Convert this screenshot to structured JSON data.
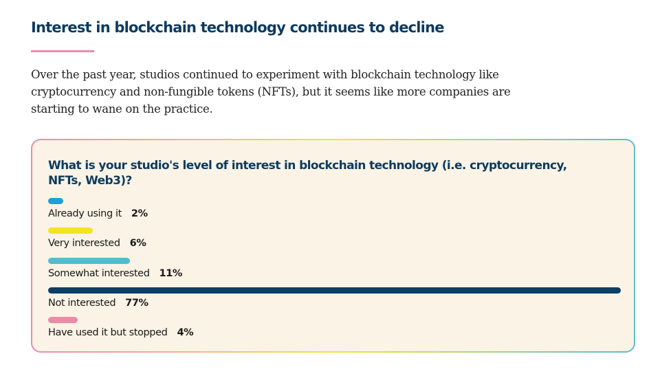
{
  "header": {
    "title": "Interest in blockchain technology continues to decline",
    "intro": "Over the past year, studios continued to experiment with blockchain technology like cryptocurrency and non-fungible tokens (NFTs), but it seems like more companies are starting to wane on the practice."
  },
  "colors": {
    "title": "#0d3b5e",
    "accent_rule": "#ec8aa8",
    "card_background": "#faf3e6"
  },
  "chart_data": {
    "type": "bar",
    "orientation": "horizontal",
    "title": "What is your studio's level of interest in blockchain technology (i.e. cryptocurrency, NFTs, Web3)?",
    "xlabel": "",
    "ylabel": "",
    "unit": "%",
    "categories": [
      "Already using it",
      "Very interested",
      "Somewhat interested",
      "Not interested",
      "Have used it but stopped"
    ],
    "values": [
      2,
      6,
      11,
      77,
      4
    ],
    "value_labels": [
      "2%",
      "6%",
      "11%",
      "77%",
      "4%"
    ],
    "bar_colors": [
      "#1e9fd8",
      "#f2e51f",
      "#55b9cf",
      "#0d3e63",
      "#ec8aa8"
    ],
    "xlim": [
      0,
      77
    ],
    "grid": false,
    "legend": "none"
  }
}
